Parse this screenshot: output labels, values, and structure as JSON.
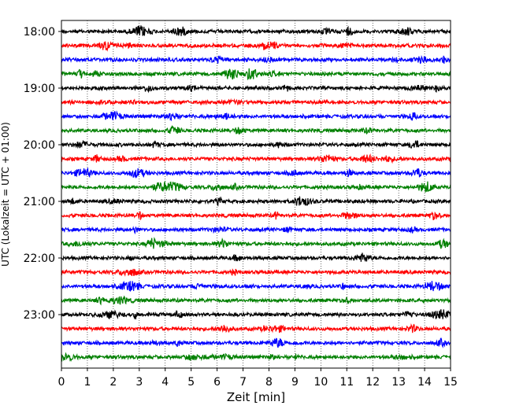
{
  "chart_data": {
    "type": "line",
    "title": "",
    "xlabel": "Zeit  [min]",
    "ylabel": "UTC (Lokalzeit = UTC + 01:00)",
    "xlim": [
      0,
      15
    ],
    "x_ticks": [
      "0",
      "1",
      "2",
      "3",
      "4",
      "5",
      "6",
      "7",
      "8",
      "9",
      "10",
      "11",
      "12",
      "13",
      "14",
      "15"
    ],
    "y_tick_labels": [
      "18:00",
      "19:00",
      "20:00",
      "21:00",
      "22:00",
      "23:00"
    ],
    "traces_per_hour": 4,
    "trace_minutes": 15,
    "trace_start_times": [
      "18:00",
      "18:15",
      "18:30",
      "18:45",
      "19:00",
      "19:15",
      "19:30",
      "19:45",
      "20:00",
      "20:15",
      "20:30",
      "20:45",
      "21:00",
      "21:15",
      "21:30",
      "21:45",
      "22:00",
      "22:15",
      "22:30",
      "22:45",
      "23:00",
      "23:15",
      "23:30",
      "23:45"
    ],
    "trace_colors": [
      "#000000",
      "#ff0000",
      "#0000ff",
      "#008000"
    ],
    "vertical_grid": "dotted"
  }
}
